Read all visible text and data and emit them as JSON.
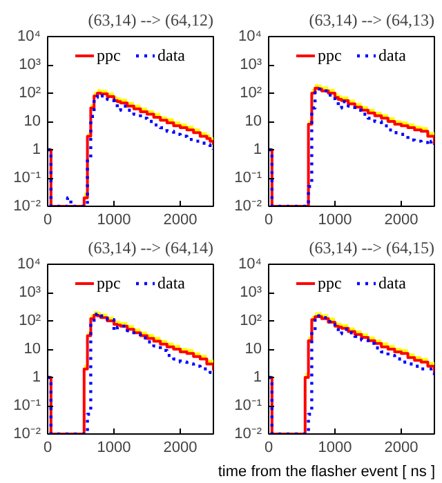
{
  "chart_data": [
    {
      "type": "step",
      "title": "(63,14) --> (64,12)",
      "log": "y",
      "legend": "top",
      "grid": false,
      "xlim": [
        0,
        2500
      ],
      "xticks": [
        0,
        1000,
        2000
      ],
      "ylim": [
        0.01,
        10000
      ],
      "yticks": [
        {
          "value": 0.01,
          "label": "10⁻²"
        },
        {
          "value": 0.1,
          "label": "10⁻¹"
        },
        1,
        10,
        {
          "value": 100,
          "label": "10²"
        },
        {
          "value": 1000,
          "label": "10³"
        },
        {
          "value": 10000,
          "label": "10⁴"
        }
      ],
      "series": [
        {
          "name": "ppc",
          "color": "#ff0000",
          "line_style": "solid",
          "x": [
            0,
            50,
            550,
            600,
            650,
            700,
            750,
            800,
            900,
            1000,
            1050,
            1100,
            1200,
            1300,
            1400,
            1500,
            1600,
            1700,
            1800,
            1900,
            2000,
            2100,
            2200,
            2300,
            2400,
            2450,
            2500
          ],
          "values": [
            1,
            0.01,
            0.02,
            3,
            30,
            80,
            100,
            95,
            75,
            55,
            50,
            45,
            35,
            28,
            22,
            18,
            14,
            11,
            9,
            7,
            6,
            5,
            4,
            3,
            2.5,
            2,
            1.5
          ],
          "lower": [
            null,
            null,
            0.02,
            3,
            30,
            80,
            100,
            95,
            75,
            55,
            50,
            45,
            35,
            28,
            22,
            18,
            14,
            11,
            9,
            7,
            6,
            5,
            4,
            3,
            2.5,
            2,
            1.5
          ],
          "upper": [
            null,
            null,
            0.03,
            4,
            40,
            110,
            140,
            130,
            105,
            77,
            70,
            63,
            49,
            39,
            31,
            25,
            20,
            15,
            13,
            10,
            8.4,
            7,
            5.6,
            4.2,
            3.5,
            2.8,
            2.1
          ]
        },
        {
          "name": "data",
          "color": "#0000ff",
          "line_style": "dotted",
          "x": [
            0,
            50,
            300,
            350,
            600,
            650,
            700,
            750,
            800,
            900,
            1000,
            1050,
            1100,
            1200,
            1300,
            1400,
            1500,
            1600,
            1700,
            1800,
            1900,
            2000,
            2100,
            2200,
            2300,
            2400,
            2450,
            2500
          ],
          "values": [
            1,
            0.01,
            0.02,
            0.01,
            0.5,
            15,
            70,
            90,
            80,
            60,
            45,
            25,
            35,
            25,
            18,
            13,
            10,
            7.5,
            6,
            4.5,
            3.5,
            3,
            2.3,
            2,
            1.7,
            1.5,
            1.2,
            1
          ]
        }
      ]
    },
    {
      "type": "step",
      "title": "(63,14) --> (64,13)",
      "log": "y",
      "legend": "top",
      "grid": false,
      "xlim": [
        0,
        2500
      ],
      "xticks": [
        0,
        1000,
        2000
      ],
      "ylim": [
        0.01,
        10000
      ],
      "yticks": [
        {
          "value": 0.01,
          "label": "10⁻²"
        },
        {
          "value": 0.1,
          "label": "10⁻¹"
        },
        1,
        10,
        {
          "value": 100,
          "label": "10²"
        },
        {
          "value": 1000,
          "label": "10³"
        },
        {
          "value": 10000,
          "label": "10⁴"
        }
      ],
      "series": [
        {
          "name": "ppc",
          "color": "#ff0000",
          "line_style": "solid",
          "x": [
            0,
            50,
            600,
            650,
            700,
            750,
            800,
            900,
            1000,
            1050,
            1100,
            1200,
            1300,
            1400,
            1500,
            1600,
            1700,
            1800,
            1900,
            2000,
            2100,
            2200,
            2300,
            2400,
            2450,
            2500
          ],
          "values": [
            1,
            0.01,
            8,
            100,
            150,
            140,
            120,
            100,
            70,
            60,
            55,
            42,
            32,
            25,
            20,
            16,
            13,
            10,
            8,
            7,
            6,
            5,
            4.5,
            3,
            3,
            1.5
          ],
          "lower": [
            null,
            null,
            8,
            100,
            150,
            140,
            120,
            100,
            70,
            60,
            55,
            42,
            32,
            25,
            20,
            16,
            13,
            10,
            8,
            7,
            6,
            5,
            4.5,
            3,
            3,
            1.5
          ],
          "upper": [
            null,
            null,
            11,
            140,
            210,
            200,
            170,
            140,
            98,
            84,
            77,
            59,
            45,
            35,
            28,
            22,
            18,
            14,
            11,
            10,
            8.4,
            7,
            6.3,
            4.2,
            4.2,
            2.1
          ]
        },
        {
          "name": "data",
          "color": "#0000ff",
          "line_style": "dotted",
          "x": [
            0,
            50,
            600,
            650,
            700,
            750,
            800,
            900,
            1000,
            1050,
            1100,
            1200,
            1300,
            1400,
            1500,
            1600,
            1700,
            1800,
            1900,
            2000,
            2100,
            2200,
            2300,
            2400,
            2450,
            2500
          ],
          "values": [
            1,
            0.01,
            0.05,
            30,
            120,
            140,
            120,
            85,
            50,
            30,
            50,
            35,
            25,
            18,
            13,
            10,
            7,
            5,
            4,
            3.5,
            2.2,
            2,
            1.8,
            1.5,
            2,
            1.5
          ]
        }
      ]
    },
    {
      "type": "step",
      "title": "(63,14) --> (64,14)",
      "log": "y",
      "legend": "top",
      "grid": false,
      "xlim": [
        0,
        2500
      ],
      "xticks": [
        0,
        1000,
        2000
      ],
      "ylim": [
        0.01,
        10000
      ],
      "yticks": [
        {
          "value": 0.01,
          "label": "10⁻²"
        },
        {
          "value": 0.1,
          "label": "10⁻¹"
        },
        1,
        10,
        {
          "value": 100,
          "label": "10²"
        },
        {
          "value": 1000,
          "label": "10³"
        },
        {
          "value": 10000,
          "label": "10⁴"
        }
      ],
      "series": [
        {
          "name": "ppc",
          "color": "#ff0000",
          "line_style": "solid",
          "x": [
            0,
            50,
            550,
            600,
            650,
            700,
            750,
            800,
            900,
            1000,
            1050,
            1100,
            1200,
            1300,
            1400,
            1500,
            1600,
            1700,
            1800,
            1900,
            2000,
            2100,
            2200,
            2300,
            2400,
            2450,
            2500
          ],
          "values": [
            1,
            0.01,
            2,
            30,
            120,
            160,
            150,
            130,
            100,
            75,
            70,
            65,
            50,
            38,
            30,
            24,
            19,
            15,
            12,
            10,
            8,
            7,
            5.5,
            4.5,
            3,
            3,
            1.8
          ],
          "lower": [
            null,
            null,
            2,
            30,
            120,
            160,
            150,
            130,
            100,
            75,
            70,
            65,
            50,
            38,
            30,
            24,
            19,
            15,
            12,
            10,
            8,
            7,
            5.5,
            4.5,
            3,
            3,
            1.8
          ],
          "upper": [
            null,
            null,
            2.8,
            42,
            170,
            220,
            210,
            180,
            140,
            105,
            98,
            91,
            70,
            53,
            42,
            34,
            27,
            21,
            17,
            14,
            11,
            10,
            7.7,
            6.3,
            4.2,
            4.2,
            2.5
          ]
        },
        {
          "name": "data",
          "color": "#0000ff",
          "line_style": "dotted",
          "x": [
            0,
            50,
            600,
            650,
            700,
            750,
            800,
            900,
            1000,
            1050,
            1100,
            1200,
            1300,
            1400,
            1500,
            1600,
            1700,
            1800,
            1900,
            2000,
            2100,
            2200,
            2300,
            2400,
            2450,
            2500
          ],
          "values": [
            1,
            0.01,
            0.05,
            80,
            170,
            180,
            150,
            110,
            45,
            60,
            65,
            45,
            33,
            25,
            18,
            13,
            9,
            6,
            4.5,
            3.5,
            3,
            2.5,
            2,
            1.8,
            1.5,
            1.3
          ]
        }
      ]
    },
    {
      "type": "step",
      "title": "(63,14) --> (64,15)",
      "xlabel": "time from the flasher event [ ns ]",
      "log": "y",
      "legend": "top",
      "grid": false,
      "xlim": [
        0,
        2500
      ],
      "xticks": [
        0,
        1000,
        2000
      ],
      "ylim": [
        0.01,
        10000
      ],
      "yticks": [
        {
          "value": 0.01,
          "label": "10⁻²"
        },
        {
          "value": 0.1,
          "label": "10⁻¹"
        },
        1,
        10,
        {
          "value": 100,
          "label": "10²"
        },
        {
          "value": 1000,
          "label": "10³"
        },
        {
          "value": 10000,
          "label": "10⁴"
        }
      ],
      "series": [
        {
          "name": "ppc",
          "color": "#ff0000",
          "line_style": "solid",
          "x": [
            0,
            50,
            550,
            600,
            650,
            700,
            750,
            800,
            900,
            1000,
            1050,
            1100,
            1200,
            1300,
            1400,
            1500,
            1600,
            1700,
            1800,
            1900,
            2000,
            2100,
            2200,
            2300,
            2400,
            2450,
            2500
          ],
          "values": [
            1,
            0.01,
            1,
            20,
            110,
            140,
            140,
            120,
            90,
            65,
            60,
            55,
            42,
            33,
            26,
            20,
            16,
            12,
            10,
            8,
            7,
            5,
            4,
            3.5,
            2.5,
            2.5,
            1.5
          ],
          "lower": [
            null,
            null,
            1,
            20,
            110,
            140,
            140,
            120,
            90,
            65,
            60,
            55,
            42,
            33,
            26,
            20,
            16,
            12,
            10,
            8,
            7,
            5,
            4,
            3.5,
            2.5,
            2.5,
            1.5
          ],
          "upper": [
            null,
            null,
            1.4,
            28,
            150,
            200,
            200,
            170,
            130,
            91,
            84,
            77,
            59,
            46,
            36,
            28,
            22,
            17,
            14,
            11,
            10,
            7,
            5.6,
            4.9,
            3.5,
            3.5,
            2.1
          ]
        },
        {
          "name": "data",
          "color": "#0000ff",
          "line_style": "dotted",
          "x": [
            0,
            50,
            600,
            650,
            700,
            750,
            800,
            900,
            1000,
            1050,
            1100,
            1200,
            1300,
            1400,
            1500,
            1600,
            1700,
            1800,
            1900,
            2000,
            2100,
            2200,
            2300,
            2400,
            2450,
            2500
          ],
          "values": [
            1,
            0.01,
            0.05,
            40,
            130,
            150,
            130,
            95,
            60,
            35,
            50,
            38,
            28,
            21,
            16,
            11,
            8,
            6,
            4.5,
            3.5,
            3,
            2.5,
            2,
            2,
            1.5,
            1.2
          ]
        }
      ]
    }
  ]
}
